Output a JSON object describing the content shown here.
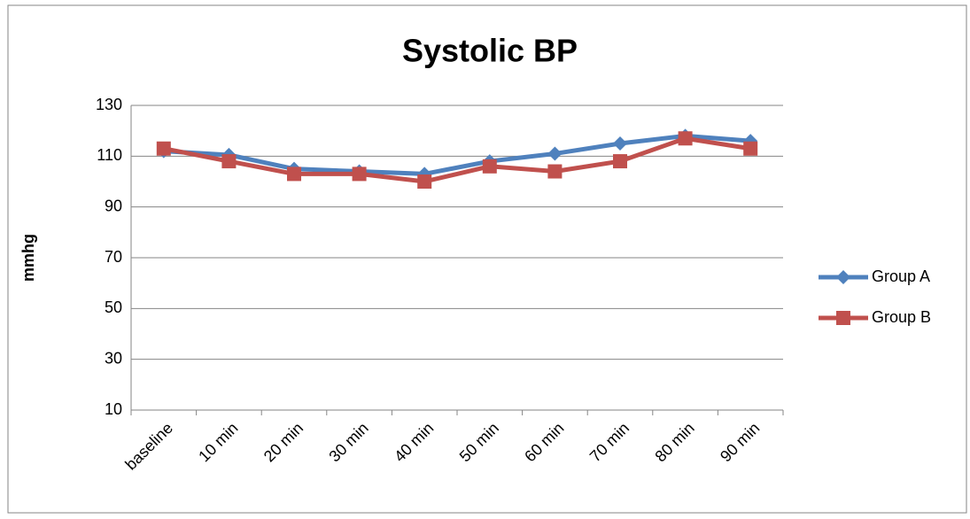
{
  "chart_data": {
    "type": "line",
    "title": "Systolic BP",
    "y_label": "mmhg",
    "categories": [
      "baseline",
      "10 min",
      "20 min",
      "30 min",
      "40 min",
      "50 min",
      "60 min",
      "70 min",
      "80 min",
      "90 min"
    ],
    "series": [
      {
        "name": "Group A",
        "color": "#4f81bd",
        "marker": "diamond",
        "values": [
          112,
          110.5,
          105,
          104,
          103,
          108,
          111,
          115,
          118,
          116
        ]
      },
      {
        "name": "Group B",
        "color": "#c0504d",
        "marker": "square",
        "values": [
          113,
          108,
          103,
          103,
          100,
          106,
          104,
          108,
          117,
          113
        ]
      }
    ],
    "ylim": [
      10,
      130
    ],
    "yticks": [
      10,
      30,
      50,
      70,
      90,
      110,
      130
    ],
    "grid": true,
    "legend": "right"
  }
}
